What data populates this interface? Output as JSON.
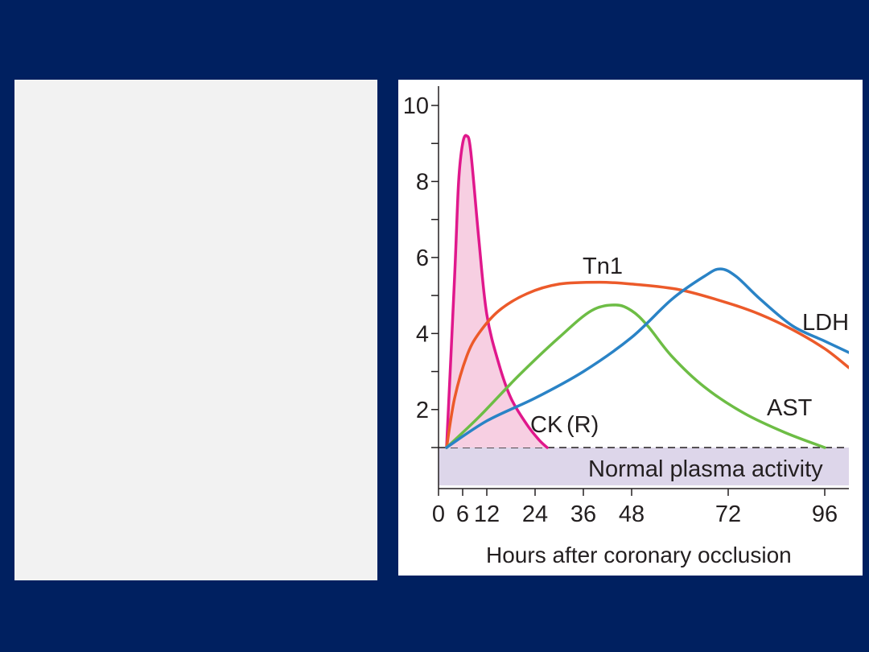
{
  "chart_data": {
    "type": "line",
    "xlabel": "Hours after coronary occlusion",
    "ylabel": "",
    "xlim": [
      0,
      102
    ],
    "ylim": [
      0,
      10
    ],
    "x_ticks": [
      0,
      6,
      12,
      24,
      36,
      48,
      72,
      96
    ],
    "y_ticks": [
      2,
      4,
      6,
      8,
      10
    ],
    "normal_band": {
      "label": "Normal plasma activity",
      "y_top": 1,
      "color": "#ddd6ea"
    },
    "series": [
      {
        "name": "CK (R)",
        "color": "#e0188c",
        "fill": "#f7cfe2",
        "x": [
          2,
          4,
          5,
          6,
          7,
          8,
          10,
          12,
          15,
          18,
          22,
          25,
          27
        ],
        "y": [
          1,
          5.5,
          8,
          9,
          9.2,
          8.8,
          6.5,
          4.5,
          3.2,
          2.3,
          1.6,
          1.2,
          1
        ]
      },
      {
        "name": "Tn1",
        "color": "#ec5a2a",
        "x": [
          2,
          4,
          7,
          10,
          15,
          22,
          30,
          40,
          48,
          60,
          72,
          80,
          88,
          96,
          102
        ],
        "y": [
          1,
          2.3,
          3.4,
          4.0,
          4.6,
          5.05,
          5.3,
          5.35,
          5.3,
          5.15,
          4.8,
          4.5,
          4.1,
          3.6,
          3.1
        ]
      },
      {
        "name": "AST",
        "color": "#6dbd45",
        "x": [
          2,
          10,
          20,
          30,
          38,
          44,
          48,
          52,
          58,
          66,
          76,
          86,
          96
        ],
        "y": [
          1,
          1.8,
          2.9,
          3.9,
          4.6,
          4.75,
          4.6,
          4.2,
          3.4,
          2.6,
          1.9,
          1.4,
          1
        ]
      },
      {
        "name": "LDH",
        "color": "#2a83c6",
        "x": [
          2,
          12,
          24,
          36,
          48,
          58,
          66,
          70,
          74,
          80,
          88,
          96,
          102
        ],
        "y": [
          1,
          1.7,
          2.3,
          3.0,
          3.9,
          4.9,
          5.5,
          5.7,
          5.5,
          4.9,
          4.2,
          3.8,
          3.5
        ]
      }
    ],
    "series_labels": [
      "Tn1",
      "LDH",
      "AST",
      "CK",
      "(R)"
    ]
  }
}
